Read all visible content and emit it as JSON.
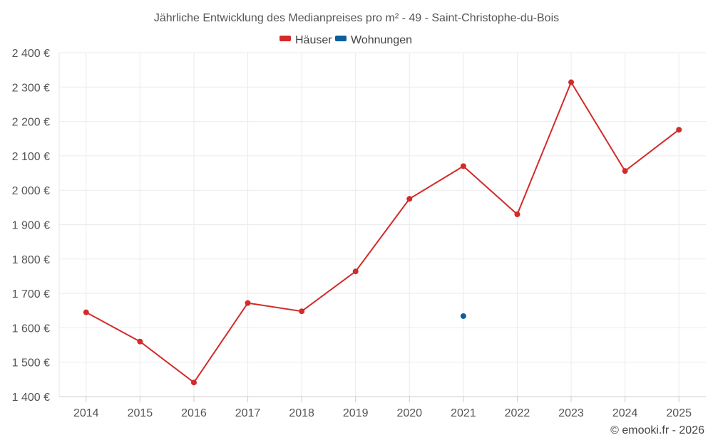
{
  "chart_data": {
    "type": "line",
    "title": "Jährliche Entwicklung des Medianpreises pro m² - 49 - Saint-Christophe-du-Bois",
    "x": [
      "2014",
      "2015",
      "2016",
      "2017",
      "2018",
      "2019",
      "2020",
      "2021",
      "2022",
      "2023",
      "2024",
      "2025"
    ],
    "ylim": [
      1400,
      2400
    ],
    "yticks": [
      1400,
      1500,
      1600,
      1700,
      1800,
      1900,
      2000,
      2100,
      2200,
      2300,
      2400
    ],
    "ytick_labels": [
      "1 400 €",
      "1 500 €",
      "1 600 €",
      "1 700 €",
      "1 800 €",
      "1 900 €",
      "2 000 €",
      "2 100 €",
      "2 200 €",
      "2 300 €",
      "2 400 €"
    ],
    "grid": true,
    "legend_position": "top-center",
    "series": [
      {
        "name": "Häuser",
        "color": "#d32a2a",
        "values": [
          1645,
          1560,
          1441,
          1672,
          1648,
          1764,
          1975,
          2070,
          1930,
          2314,
          2056,
          2176
        ]
      },
      {
        "name": "Wohnungen",
        "color": "#0b5f9a",
        "values": [
          null,
          null,
          null,
          null,
          null,
          null,
          null,
          1634,
          null,
          null,
          null,
          null
        ]
      }
    ]
  },
  "credit": "© emooki.fr - 2026"
}
